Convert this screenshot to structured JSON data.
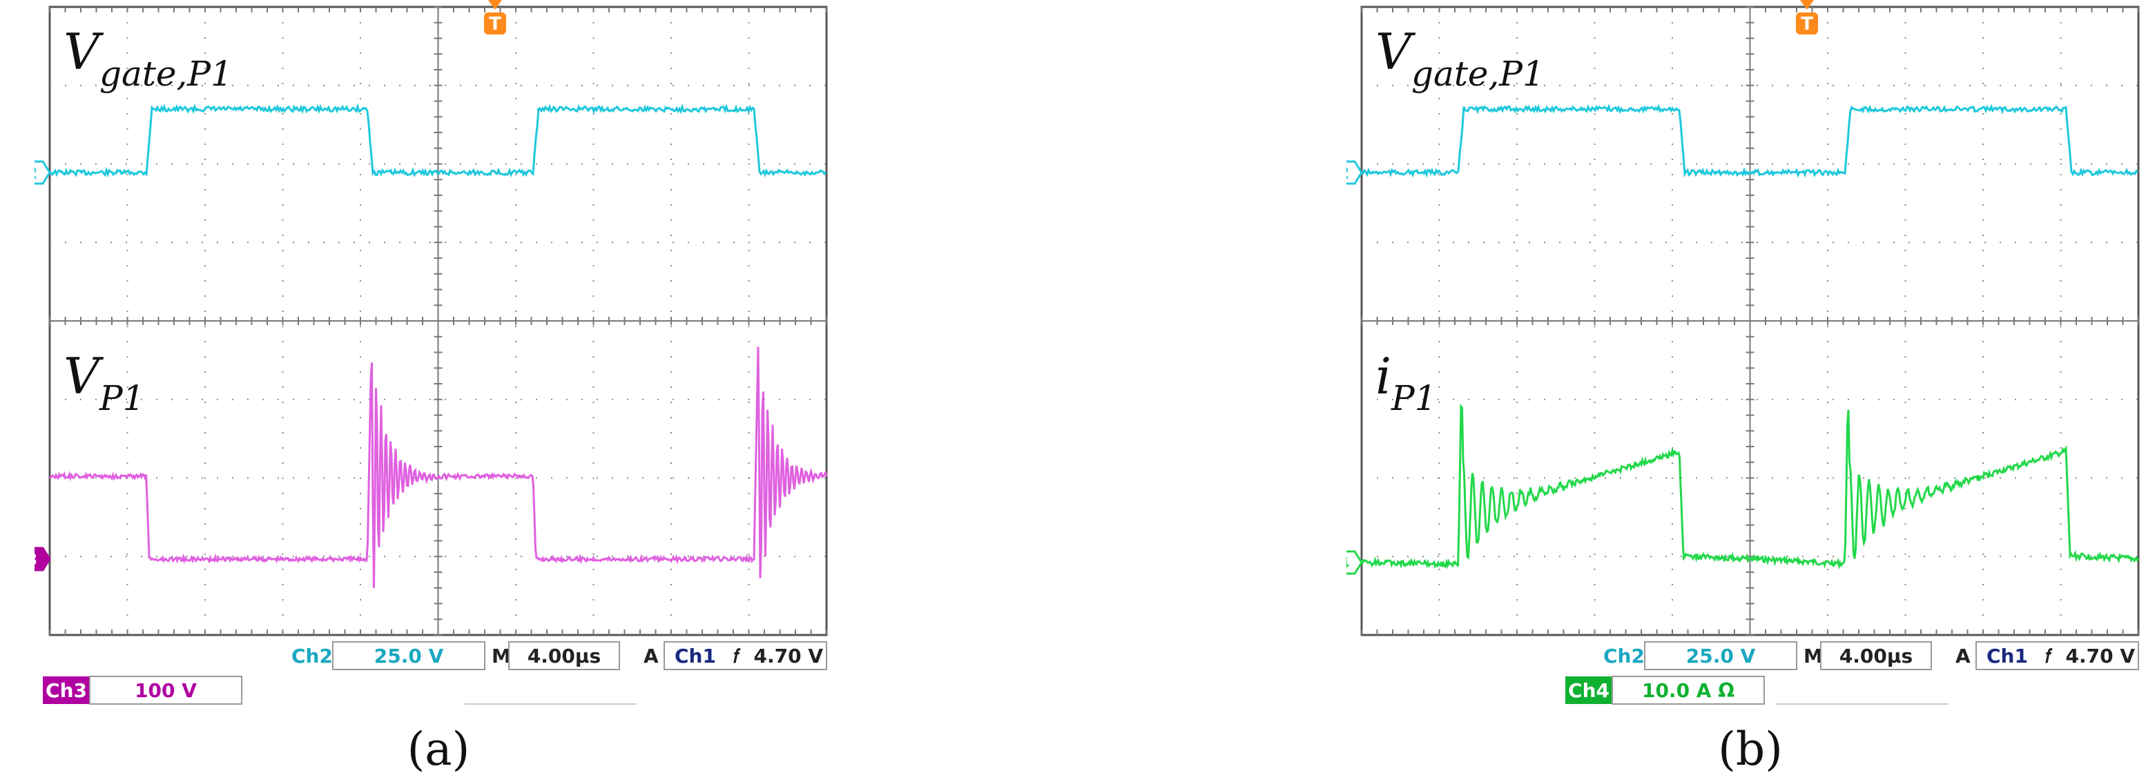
{
  "chart_data": [
    {
      "type": "line",
      "panel_label": "(a)",
      "channels": [
        {
          "label_main": "V",
          "label_sub": "gate,P1",
          "marker": "2",
          "color": "#1ec8dc",
          "shape": "gate"
        },
        {
          "label_main": "V",
          "label_sub": "P1",
          "marker": "3",
          "color": "#e060e0",
          "shape": "voltage"
        }
      ],
      "status": {
        "ch_a_name": "Ch2",
        "ch_a_value": "25.0 V",
        "m_label": "M",
        "timebase": "4.00µs",
        "trig_mode": "A",
        "trig_src": "Ch1",
        "trig_slope": "𝑓",
        "trig_level": "4.70 V",
        "ch_b_name": "Ch3",
        "ch_b_value": "100 V",
        "ch_b_color": "#b000a0"
      },
      "trigger_marker": "T",
      "time_divisions": 10,
      "voltage_divisions": 8
    },
    {
      "type": "line",
      "panel_label": "(b)",
      "channels": [
        {
          "label_main": "V",
          "label_sub": "gate,P1",
          "marker": "2",
          "color": "#1ec8dc",
          "shape": "gate"
        },
        {
          "label_main": "i",
          "label_sub": "P1",
          "marker": "4",
          "color": "#22d84a",
          "shape": "current"
        }
      ],
      "status": {
        "ch_a_name": "Ch2",
        "ch_a_value": "25.0 V",
        "m_label": "M",
        "timebase": "4.00µs",
        "trig_mode": "A",
        "trig_src": "Ch1",
        "trig_slope": "𝑓",
        "trig_level": "4.70 V",
        "ch_b_name": "Ch4",
        "ch_b_value": "10.0 A Ω",
        "ch_b_color": "#10b030"
      },
      "trigger_marker": "T",
      "time_divisions": 10,
      "voltage_divisions": 8
    }
  ]
}
